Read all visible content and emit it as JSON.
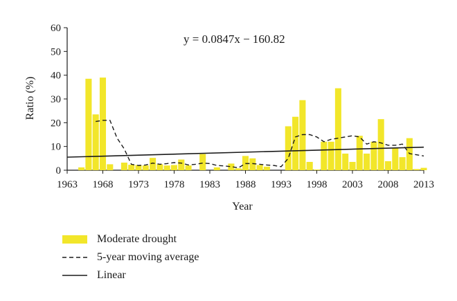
{
  "chart_data": {
    "type": "bar",
    "title": "",
    "xlabel": "Year",
    "ylabel": "Ratio (%)",
    "xlim": [
      1963,
      2013
    ],
    "ylim": [
      0,
      60
    ],
    "x_ticks": [
      1963,
      1968,
      1973,
      1978,
      1983,
      1988,
      1993,
      1998,
      2003,
      2008,
      2013
    ],
    "y_ticks": [
      0,
      10,
      20,
      30,
      40,
      50,
      60
    ],
    "annotation": "y = 0.0847x − 160.82",
    "colors": {
      "bar": "#f2e62a",
      "line": "#1a1a1a"
    },
    "series": [
      {
        "name": "Moderate drought",
        "kind": "bar",
        "x": [
          1965,
          1966,
          1967,
          1968,
          1969,
          1971,
          1972,
          1973,
          1974,
          1975,
          1976,
          1977,
          1978,
          1979,
          1980,
          1982,
          1983,
          1984,
          1986,
          1987,
          1988,
          1989,
          1990,
          1991,
          1994,
          1995,
          1996,
          1997,
          1998,
          1999,
          2000,
          2001,
          2002,
          2003,
          2004,
          2005,
          2006,
          2007,
          2008,
          2009,
          2010,
          2011,
          2012,
          2013
        ],
        "values": [
          1.2,
          38.5,
          23.5,
          39,
          2.5,
          3.2,
          2.3,
          2.2,
          2,
          5.2,
          2.5,
          2,
          2.2,
          4.5,
          2,
          6.8,
          0,
          1.2,
          2.8,
          0.8,
          6,
          5,
          2.2,
          1.5,
          18.5,
          22.5,
          29.5,
          3.5,
          0.3,
          12,
          12,
          34.5,
          7,
          3.5,
          14.5,
          7,
          12,
          21.5,
          3.8,
          9.5,
          5.5,
          13.5,
          0.5,
          1
        ]
      },
      {
        "name": "5-year moving average",
        "kind": "line-dashed",
        "x": [
          1967,
          1968,
          1969,
          1970,
          1971,
          1972,
          1973,
          1974,
          1975,
          1976,
          1977,
          1978,
          1979,
          1980,
          1981,
          1982,
          1983,
          1984,
          1985,
          1986,
          1987,
          1988,
          1989,
          1990,
          1991,
          1992,
          1993,
          1994,
          1995,
          1996,
          1997,
          1998,
          1999,
          2000,
          2001,
          2002,
          2003,
          2004,
          2005,
          2006,
          2007,
          2008,
          2009,
          2010,
          2011,
          2012,
          2013
        ],
        "values": [
          20.5,
          21,
          21,
          13.5,
          9,
          2.5,
          2,
          2.2,
          3,
          2.5,
          2.8,
          3.2,
          3,
          2.2,
          2.5,
          3,
          2.8,
          2,
          1.8,
          1.5,
          1,
          2.8,
          2.8,
          2.5,
          2.2,
          2,
          1.5,
          5,
          14,
          15,
          15,
          14,
          12,
          13,
          13.5,
          14,
          14.5,
          14,
          11,
          12,
          11.5,
          10.5,
          10.5,
          11,
          7,
          6.5,
          6
        ]
      },
      {
        "name": "Linear",
        "kind": "line",
        "x": [
          1963,
          2013
        ],
        "values": [
          5.5,
          9.7
        ]
      }
    ]
  }
}
